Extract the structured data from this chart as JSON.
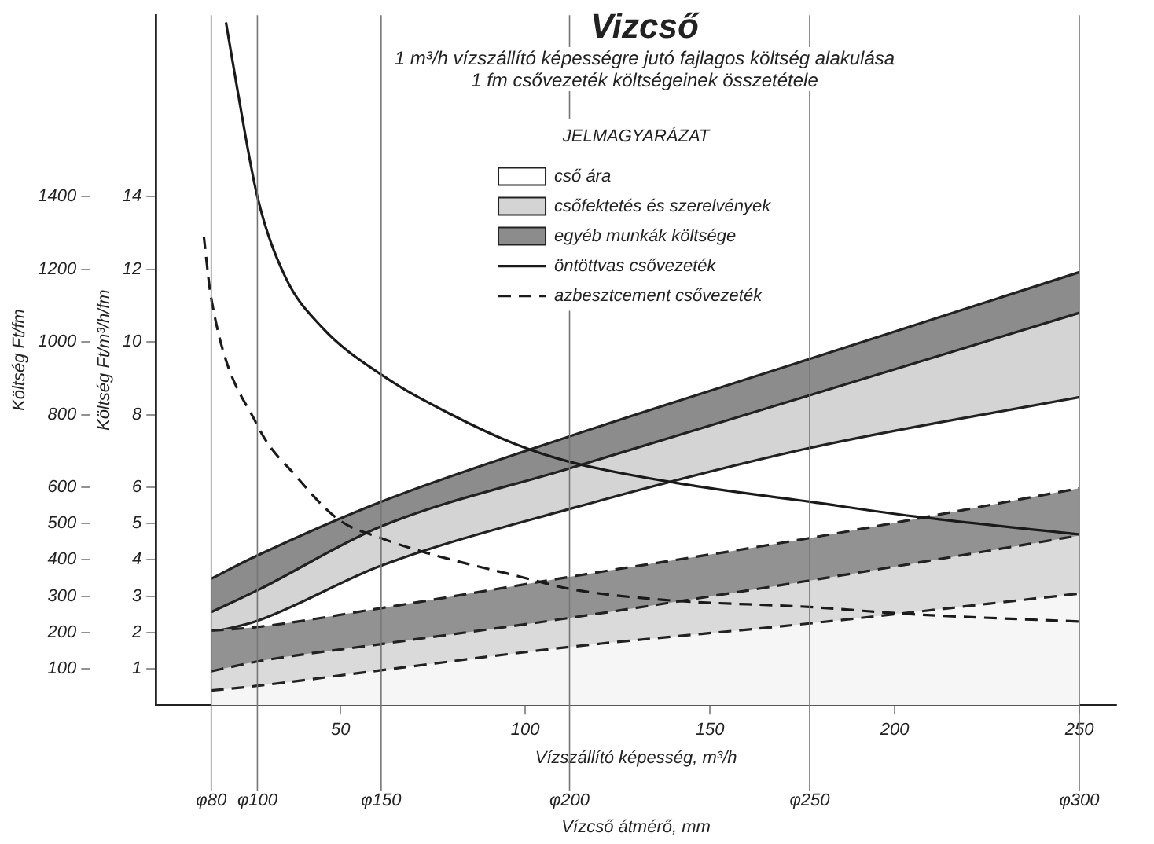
{
  "chart_data": {
    "type": "area",
    "title": "Vizcső",
    "subtitle": "1 m³/h vízszállító képességre jutó fajlagos költség alakulása\n1 fm csővezeték költségeinek összetétele",
    "legend_title": "JELMAGYARÁZAT",
    "legend": "top",
    "xlabel": "Vízszállító képesség, m³/h",
    "annotations": [
      "Vízcső átmérő, mm"
    ],
    "ylabel": "Költség Ft/fm",
    "y2label": "Költség Ft/m³/h/fm",
    "xlim": [
      0,
      260
    ],
    "xticks": [
      50,
      100,
      150,
      200,
      250
    ],
    "ref_lines": [
      {
        "axis": "x",
        "value": 15,
        "label": "φ80"
      },
      {
        "axis": "x",
        "value": 27.5,
        "label": "φ100"
      },
      {
        "axis": "x",
        "value": 61,
        "label": "φ150"
      },
      {
        "axis": "x",
        "value": 112,
        "label": "φ200"
      },
      {
        "axis": "x",
        "value": 177,
        "label": "φ250"
      },
      {
        "axis": "x",
        "value": 250,
        "label": "φ300"
      }
    ],
    "ylim": [
      0,
      1900
    ],
    "yticks": [
      100,
      200,
      300,
      400,
      500,
      600,
      800,
      1000,
      1200,
      1400
    ],
    "y2lim": [
      0,
      19
    ],
    "y2ticks": [
      1,
      2,
      3,
      4,
      5,
      6,
      8,
      10,
      12,
      14
    ],
    "series": [
      {
        "name": "egyéb munkák költsége",
        "color": "#8c8c8c",
        "line_style": "solid",
        "x": [
          15,
          27.5,
          61,
          112,
          177,
          250
        ],
        "values": [
          348,
          412,
          560,
          740,
          953,
          1192
        ]
      },
      {
        "name": "csőfektetés és szerelvények",
        "color": "#d4d4d4",
        "line_style": "solid",
        "x": [
          15,
          27.5,
          61,
          112,
          177,
          250
        ],
        "values": [
          256,
          316,
          492,
          652,
          853,
          1080
        ]
      },
      {
        "name": "cső ára",
        "color": "#ffffff",
        "line_style": "solid",
        "x": [
          15,
          27.5,
          61,
          112,
          177,
          250
        ],
        "values": [
          200,
          232,
          384,
          540,
          708,
          848
        ]
      },
      {
        "color": "#929292",
        "line_style": "dashed",
        "x": [
          15,
          27.5,
          61,
          112,
          177,
          250
        ],
        "values": [
          205,
          215,
          267,
          353,
          460,
          597
        ]
      },
      {
        "color": "#dadada",
        "line_style": "dashed",
        "x": [
          15,
          27.5,
          61,
          112,
          177,
          250
        ],
        "values": [
          93,
          120,
          168,
          240,
          343,
          467
        ]
      },
      {
        "color": "#f6f6f6",
        "line_style": "dashed",
        "x": [
          15,
          27.5,
          61,
          112,
          177,
          250
        ],
        "values": [
          40,
          53,
          96,
          160,
          225,
          307
        ]
      },
      {
        "name": "öntöttvas csővezeték",
        "type": "line",
        "axis": "y2",
        "color": "#1a1a1a",
        "line_style": "solid",
        "x": [
          19,
          22,
          27.5,
          35,
          45,
          61,
          80,
          97,
          112,
          142,
          177,
          205,
          250
        ],
        "values": [
          18.8,
          17,
          14,
          11.8,
          10.4,
          9.1,
          8,
          7.2,
          6.7,
          6.1,
          5.6,
          5.2,
          4.7
        ]
      },
      {
        "name": "azbesztcement csővezeték",
        "type": "line",
        "axis": "y2",
        "color": "#1a1a1a",
        "line_style": "dashed",
        "x": [
          13,
          15,
          27.5,
          38,
          49.6,
          61,
          73,
          100,
          112,
          137,
          177,
          205,
          250
        ],
        "values": [
          12.9,
          11.2,
          7.7,
          6.3,
          5.1,
          4.6,
          4.2,
          3.5,
          3.2,
          2.9,
          2.7,
          2.5,
          2.3
        ]
      }
    ]
  }
}
